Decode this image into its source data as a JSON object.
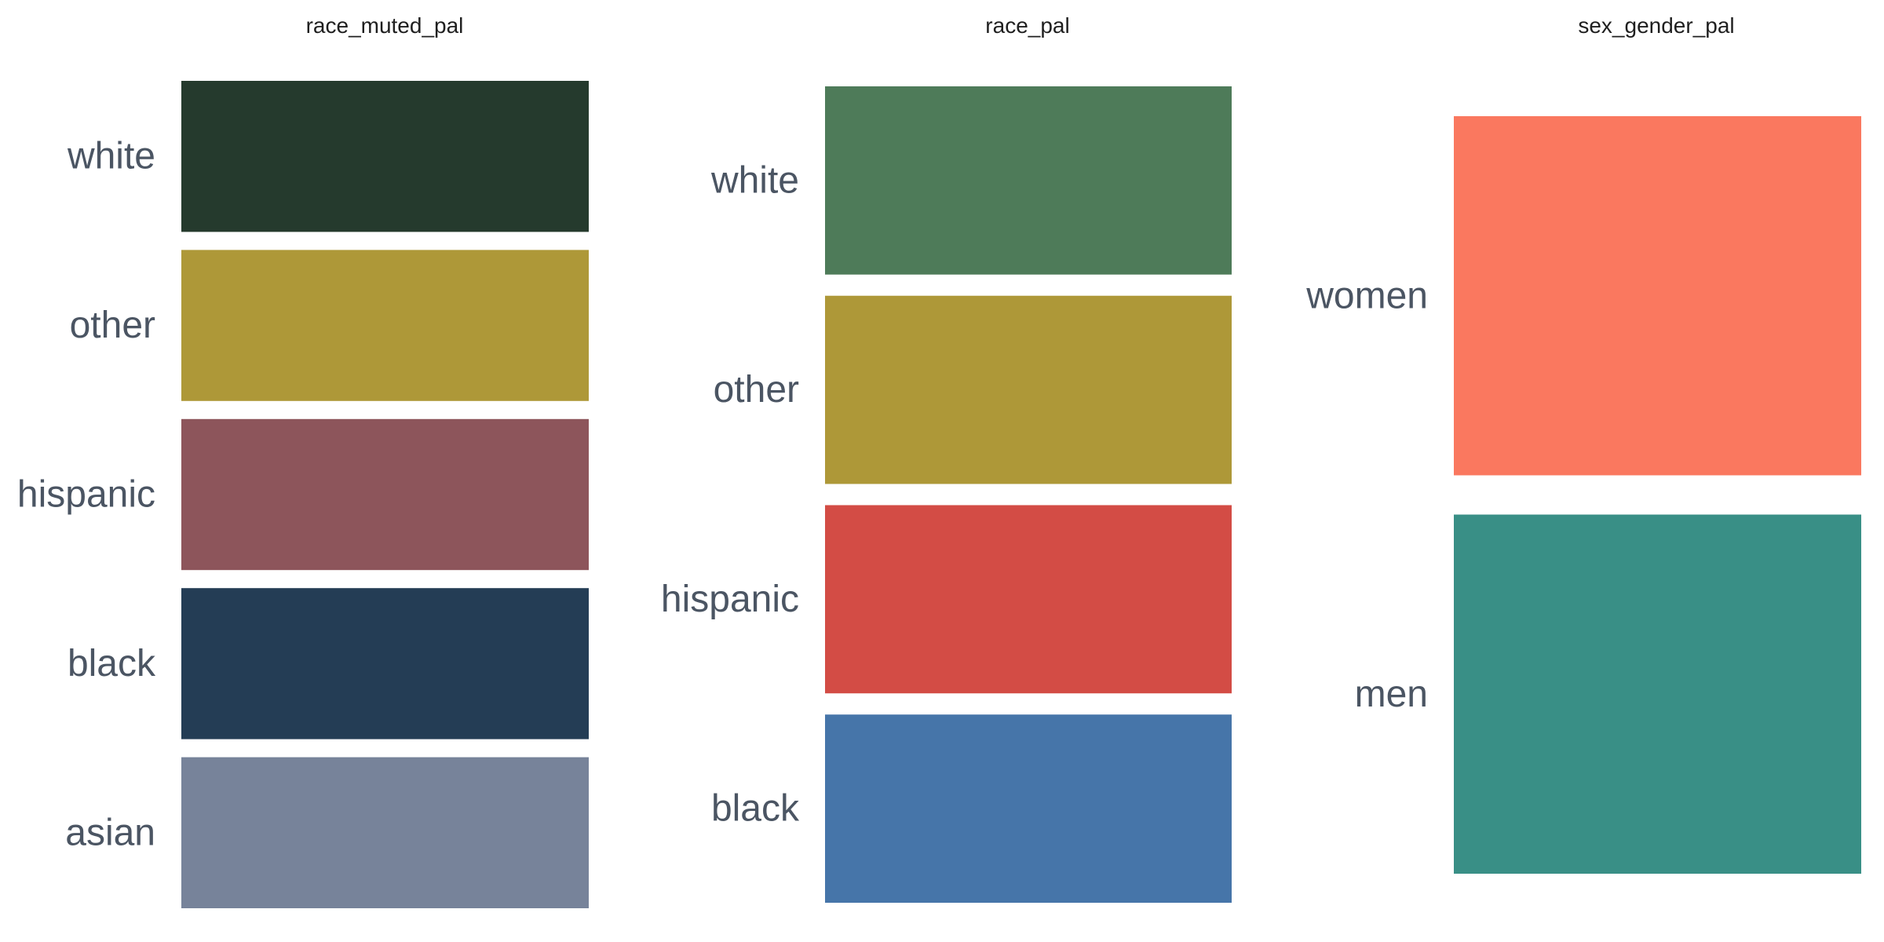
{
  "chart_data": [
    {
      "type": "table",
      "title": "race_muted_pal",
      "swatches": [
        {
          "label": "white",
          "color": "#253a2d"
        },
        {
          "label": "other",
          "color": "#ae9838"
        },
        {
          "label": "hispanic",
          "color": "#8d555b"
        },
        {
          "label": "black",
          "color": "#243d55"
        },
        {
          "label": "asian",
          "color": "#77839a"
        }
      ]
    },
    {
      "type": "table",
      "title": "race_pal",
      "swatches": [
        {
          "label": "white",
          "color": "#4e7b59"
        },
        {
          "label": "other",
          "color": "#ae9838"
        },
        {
          "label": "hispanic",
          "color": "#d34c45"
        },
        {
          "label": "black",
          "color": "#4675a9"
        }
      ]
    },
    {
      "type": "table",
      "title": "sex_gender_pal",
      "swatches": [
        {
          "label": "women",
          "color": "#fa785f"
        },
        {
          "label": "men",
          "color": "#398f86"
        }
      ]
    }
  ]
}
